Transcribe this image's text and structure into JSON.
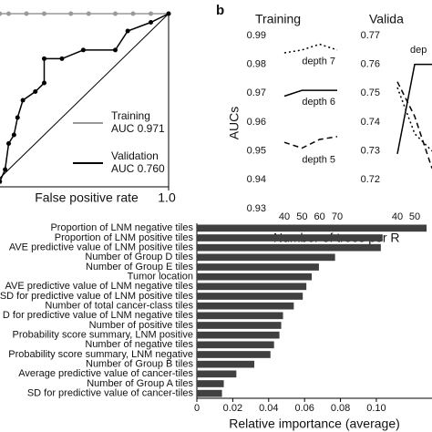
{
  "chart_data": [
    {
      "type": "line",
      "xlabel": "False positive rate",
      "xlim": [
        0,
        1
      ],
      "ylim": [
        0,
        1
      ],
      "xticks": [
        {
          "value": 1,
          "label": "1.0"
        }
      ],
      "series": [
        {
          "name": "Training",
          "auc": "AUC 0.971",
          "color": "#999999",
          "x": [
            0,
            0.005,
            0.01,
            0.015,
            0.02,
            0.03,
            0.05,
            0.1,
            0.2,
            0.3,
            0.45,
            0.55,
            0.7,
            0.8,
            0.9,
            1
          ],
          "values": [
            0.4,
            0.5,
            0.6,
            0.7,
            0.8,
            0.9,
            1,
            1,
            1,
            1,
            1,
            1,
            1,
            1,
            1,
            1
          ]
        },
        {
          "name": "Validation",
          "auc": "AUC 0.760",
          "color": "#000000",
          "x": [
            0.05,
            0.08,
            0.1,
            0.13,
            0.15,
            0.18,
            0.25,
            0.3,
            0.3,
            0.4,
            0.52,
            0.7,
            0.77,
            0.9,
            1
          ],
          "values": [
            0.03,
            0.1,
            0.25,
            0.3,
            0.4,
            0.5,
            0.55,
            0.6,
            0.74,
            0.74,
            0.79,
            0.79,
            0.9,
            0.95,
            1
          ]
        }
      ]
    },
    {
      "type": "line",
      "panel_label": "b",
      "title": "Training",
      "ylabel": "AUCs",
      "xlabel": "Number of trees per R",
      "x": [
        40,
        50,
        60,
        70
      ],
      "xticks": [
        40,
        50,
        60,
        70
      ],
      "xlim": [
        40,
        70
      ],
      "ylim": [
        0.93,
        0.99
      ],
      "yticks": [
        0.93,
        0.94,
        0.95,
        0.96,
        0.97,
        0.98,
        0.99
      ],
      "series": [
        {
          "name": "depth 7",
          "color": "#000000",
          "dash": "dotted",
          "values": [
            0.984,
            0.985,
            0.987,
            0.985
          ]
        },
        {
          "name": "depth 6",
          "color": "#000000",
          "dash": "solid",
          "values": [
            0.969,
            0.971,
            0.971,
            0.971
          ]
        },
        {
          "name": "depth 5",
          "color": "#000000",
          "dash": "dashed",
          "values": [
            0.953,
            0.951,
            0.954,
            0.955
          ]
        }
      ]
    },
    {
      "type": "line",
      "title": "Valida",
      "annotation": "dep",
      "x": [
        40,
        50,
        60
      ],
      "xticks": [
        40,
        50
      ],
      "xlim": [
        40,
        70
      ],
      "ylim": [
        0.71,
        0.77
      ],
      "yticks": [
        0.72,
        0.73,
        0.74,
        0.75,
        0.76,
        0.77
      ],
      "series": [
        {
          "color": "#000000",
          "dash": "dotted",
          "values": [
            0.752,
            0.736,
            0.73
          ]
        },
        {
          "color": "#000000",
          "dash": "solid",
          "values": [
            0.729,
            0.76,
            0.76
          ]
        },
        {
          "color": "#000000",
          "dash": "dashed",
          "values": [
            0.754,
            0.742,
            0.724
          ]
        }
      ]
    },
    {
      "type": "bar",
      "orientation": "horizontal",
      "xlabel": "Relative importance (average)",
      "color": "#404040",
      "categories": [
        "Proportion of LNM negative tiles",
        "Proportion of LNM positive tiles",
        "AVE predictive value of LNM positive tiles",
        "Number of Group D tiles",
        "Number of Group E tiles",
        "Tumor location",
        "AVE predictive value of LNM negative tiles",
        "SD for predictive value of LNM positive tiles",
        "Number of total cancer-class tiles",
        "D for predictive value of LNM negative tiles",
        "Number of positive tiles",
        "Probability score summary, LNM positive",
        "Number of negative tiles",
        "Probability score summary, LNM negative",
        "Number of Group B tiles",
        "Average predictive value of cancer-tiles",
        "Number of Group A tiles",
        "SD for predictive value of cancer-tiles"
      ],
      "values": [
        0.128,
        0.1035,
        0.1025,
        0.077,
        0.068,
        0.064,
        0.061,
        0.059,
        0.054,
        0.048,
        0.047,
        0.046,
        0.043,
        0.041,
        0.032,
        0.022,
        0.015,
        0.014
      ],
      "xlim": [
        0,
        0.131
      ],
      "xticks": [
        0,
        0.02,
        0.04,
        0.06,
        0.08,
        {
          "value": 0.1,
          "label": "0.10"
        }
      ]
    }
  ]
}
